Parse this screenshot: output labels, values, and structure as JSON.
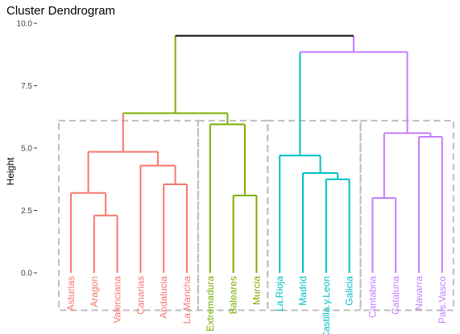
{
  "chart_data": {
    "type": "dendrogram",
    "title": "Cluster Dendrogram",
    "xlabel": "",
    "ylabel": "Height",
    "ylim": [
      -1.5,
      10
    ],
    "yticks": [
      0.0,
      2.5,
      5.0,
      7.5,
      10.0
    ],
    "ytick_labels": [
      "0.0",
      "2.5",
      "5.0",
      "7.5",
      "10.0"
    ],
    "grid": false,
    "leaves": [
      "Asturias",
      "Aragon",
      "Valenciana",
      "Canarias",
      "Andalucia",
      "La.Mancha",
      "Extremadura",
      "Baleares",
      "Murcia",
      "La.Rioja",
      "Madrid",
      "Castilla.y.Leon",
      "Galicia",
      "Cantabria",
      "Cataluna",
      "Navarra",
      "Pais.Vasco"
    ],
    "merges": [
      {
        "left": "leaf:1",
        "right": "leaf:2",
        "height": 2.3,
        "color": "#F8766D"
      },
      {
        "left": "leaf:0",
        "right": "m0",
        "height": 3.2,
        "color": "#F8766D"
      },
      {
        "left": "leaf:4",
        "right": "leaf:5",
        "height": 3.55,
        "color": "#F8766D"
      },
      {
        "left": "leaf:3",
        "right": "m2",
        "height": 4.3,
        "color": "#F8766D"
      },
      {
        "left": "m1",
        "right": "m3",
        "height": 4.85,
        "color": "#F8766D"
      },
      {
        "left": "leaf:7",
        "right": "leaf:8",
        "height": 3.1,
        "color": "#7CAE00"
      },
      {
        "left": "leaf:6",
        "right": "m5",
        "height": 5.95,
        "color": "#7CAE00"
      },
      {
        "left": "m4",
        "right": "m6",
        "height": 6.4,
        "color": "#7CAE00"
      },
      {
        "left": "leaf:11",
        "right": "leaf:12",
        "height": 3.75,
        "color": "#00BFC4"
      },
      {
        "left": "leaf:10",
        "right": "m8",
        "height": 4.0,
        "color": "#00BFC4"
      },
      {
        "left": "leaf:9",
        "right": "m9",
        "height": 4.7,
        "color": "#00BFC4"
      },
      {
        "left": "leaf:13",
        "right": "leaf:14",
        "height": 3.0,
        "color": "#C77CFF"
      },
      {
        "left": "leaf:15",
        "right": "leaf:16",
        "height": 5.45,
        "color": "#C77CFF"
      },
      {
        "left": "m11",
        "right": "m12",
        "height": 5.6,
        "color": "#C77CFF"
      },
      {
        "left": "m10",
        "right": "m13",
        "height": 8.85,
        "color": "#C77CFF"
      },
      {
        "left": "m7",
        "right": "m14",
        "height": 9.5,
        "color": "#000000"
      }
    ],
    "clusters": [
      {
        "from": 0,
        "to": 5,
        "color": "#F8766D"
      },
      {
        "from": 6,
        "to": 8,
        "color": "#7CAE00"
      },
      {
        "from": 9,
        "to": 12,
        "color": "#00BFC4"
      },
      {
        "from": 13,
        "to": 16,
        "color": "#C77CFF"
      }
    ],
    "cluster_box_top": 6.1,
    "cluster_box_bottom": -1.5,
    "cluster_box_color": "#BEBEBE"
  }
}
